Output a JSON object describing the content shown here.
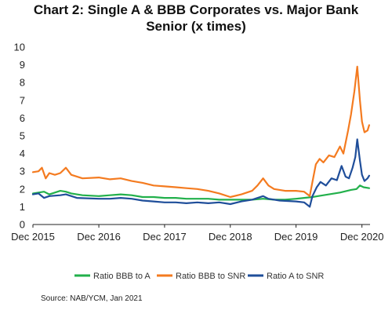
{
  "chart_data": {
    "type": "line",
    "title_line1": "Chart 2: Single A & BBB Corporates vs. Major Bank",
    "title_line2": "Senior (x times)",
    "xlabel": "",
    "ylabel": "",
    "xlim": [
      "2015-12-01",
      "2021-01-15"
    ],
    "ylim": [
      0,
      10
    ],
    "y_ticks": [
      "0",
      "1",
      "2",
      "3",
      "4",
      "5",
      "6",
      "7",
      "8",
      "9",
      "10"
    ],
    "x_ticks": [
      {
        "date": "2015-12-01",
        "label": "Dec 2015"
      },
      {
        "date": "2016-12-01",
        "label": "Dec 2016"
      },
      {
        "date": "2017-12-01",
        "label": "Dec 2017"
      },
      {
        "date": "2018-12-01",
        "label": "Dec 2018"
      },
      {
        "date": "2019-12-01",
        "label": "Dec 2019"
      },
      {
        "date": "2020-12-01",
        "label": "Dec 2020"
      }
    ],
    "grid": false,
    "legend_position": "bottom",
    "series": [
      {
        "name": "Ratio BBB to A",
        "color": "#22b04b",
        "points": [
          [
            "2015-12-01",
            1.75
          ],
          [
            "2016-01-01",
            1.8
          ],
          [
            "2016-02-01",
            1.85
          ],
          [
            "2016-03-01",
            1.7
          ],
          [
            "2016-04-01",
            1.8
          ],
          [
            "2016-05-01",
            1.9
          ],
          [
            "2016-06-01",
            1.85
          ],
          [
            "2016-07-01",
            1.75
          ],
          [
            "2016-09-01",
            1.65
          ],
          [
            "2016-12-01",
            1.6
          ],
          [
            "2017-02-01",
            1.65
          ],
          [
            "2017-04-01",
            1.7
          ],
          [
            "2017-06-01",
            1.65
          ],
          [
            "2017-08-01",
            1.55
          ],
          [
            "2017-10-01",
            1.55
          ],
          [
            "2017-12-01",
            1.5
          ],
          [
            "2018-02-01",
            1.5
          ],
          [
            "2018-04-01",
            1.45
          ],
          [
            "2018-06-01",
            1.45
          ],
          [
            "2018-08-01",
            1.45
          ],
          [
            "2018-10-01",
            1.4
          ],
          [
            "2018-12-01",
            1.4
          ],
          [
            "2019-02-01",
            1.4
          ],
          [
            "2019-04-01",
            1.4
          ],
          [
            "2019-06-01",
            1.45
          ],
          [
            "2019-08-01",
            1.4
          ],
          [
            "2019-10-01",
            1.4
          ],
          [
            "2019-12-01",
            1.45
          ],
          [
            "2020-01-15",
            1.5
          ],
          [
            "2020-03-01",
            1.55
          ],
          [
            "2020-04-01",
            1.6
          ],
          [
            "2020-06-01",
            1.7
          ],
          [
            "2020-08-01",
            1.8
          ],
          [
            "2020-10-01",
            1.95
          ],
          [
            "2020-11-01",
            2.0
          ],
          [
            "2020-11-20",
            2.2
          ],
          [
            "2020-12-10",
            2.1
          ],
          [
            "2021-01-10",
            2.05
          ]
        ]
      },
      {
        "name": "Ratio BBB to SNR",
        "color": "#f47b20",
        "points": [
          [
            "2015-12-01",
            2.95
          ],
          [
            "2016-01-01",
            3.0
          ],
          [
            "2016-01-20",
            3.2
          ],
          [
            "2016-02-10",
            2.6
          ],
          [
            "2016-03-01",
            2.9
          ],
          [
            "2016-04-01",
            2.8
          ],
          [
            "2016-05-01",
            2.9
          ],
          [
            "2016-06-01",
            3.2
          ],
          [
            "2016-07-01",
            2.8
          ],
          [
            "2016-09-01",
            2.6
          ],
          [
            "2016-12-01",
            2.65
          ],
          [
            "2017-02-01",
            2.55
          ],
          [
            "2017-04-01",
            2.6
          ],
          [
            "2017-06-01",
            2.45
          ],
          [
            "2017-08-01",
            2.35
          ],
          [
            "2017-10-01",
            2.2
          ],
          [
            "2017-12-01",
            2.15
          ],
          [
            "2018-02-01",
            2.1
          ],
          [
            "2018-04-01",
            2.05
          ],
          [
            "2018-06-01",
            2.0
          ],
          [
            "2018-08-01",
            1.9
          ],
          [
            "2018-10-01",
            1.75
          ],
          [
            "2018-12-01",
            1.55
          ],
          [
            "2019-02-01",
            1.7
          ],
          [
            "2019-04-01",
            1.9
          ],
          [
            "2019-05-01",
            2.2
          ],
          [
            "2019-06-01",
            2.6
          ],
          [
            "2019-07-01",
            2.2
          ],
          [
            "2019-08-01",
            2.0
          ],
          [
            "2019-10-01",
            1.9
          ],
          [
            "2019-12-01",
            1.9
          ],
          [
            "2020-01-15",
            1.85
          ],
          [
            "2020-02-15",
            1.6
          ],
          [
            "2020-03-01",
            2.4
          ],
          [
            "2020-03-20",
            3.4
          ],
          [
            "2020-04-10",
            3.7
          ],
          [
            "2020-05-01",
            3.5
          ],
          [
            "2020-06-01",
            3.9
          ],
          [
            "2020-07-01",
            3.8
          ],
          [
            "2020-08-01",
            4.4
          ],
          [
            "2020-08-20",
            4.0
          ],
          [
            "2020-09-15",
            5.3
          ],
          [
            "2020-10-01",
            6.2
          ],
          [
            "2020-10-20",
            7.5
          ],
          [
            "2020-11-05",
            8.9
          ],
          [
            "2020-11-20",
            7.0
          ],
          [
            "2020-12-01",
            5.8
          ],
          [
            "2020-12-15",
            5.2
          ],
          [
            "2021-01-01",
            5.3
          ],
          [
            "2021-01-10",
            5.6
          ]
        ]
      },
      {
        "name": "Ratio A to SNR",
        "color": "#1f4e9a",
        "points": [
          [
            "2015-12-01",
            1.7
          ],
          [
            "2016-01-01",
            1.75
          ],
          [
            "2016-02-01",
            1.5
          ],
          [
            "2016-03-01",
            1.6
          ],
          [
            "2016-05-01",
            1.65
          ],
          [
            "2016-06-01",
            1.7
          ],
          [
            "2016-08-01",
            1.5
          ],
          [
            "2016-12-01",
            1.45
          ],
          [
            "2017-02-01",
            1.45
          ],
          [
            "2017-04-01",
            1.5
          ],
          [
            "2017-06-01",
            1.45
          ],
          [
            "2017-08-01",
            1.35
          ],
          [
            "2017-10-01",
            1.3
          ],
          [
            "2017-12-01",
            1.25
          ],
          [
            "2018-02-01",
            1.25
          ],
          [
            "2018-04-01",
            1.2
          ],
          [
            "2018-06-01",
            1.25
          ],
          [
            "2018-08-01",
            1.2
          ],
          [
            "2018-10-01",
            1.25
          ],
          [
            "2018-12-01",
            1.15
          ],
          [
            "2019-02-01",
            1.3
          ],
          [
            "2019-04-01",
            1.4
          ],
          [
            "2019-06-01",
            1.6
          ],
          [
            "2019-07-01",
            1.45
          ],
          [
            "2019-09-01",
            1.35
          ],
          [
            "2019-12-01",
            1.3
          ],
          [
            "2020-01-15",
            1.25
          ],
          [
            "2020-02-15",
            1.0
          ],
          [
            "2020-03-01",
            1.6
          ],
          [
            "2020-03-25",
            2.1
          ],
          [
            "2020-04-15",
            2.4
          ],
          [
            "2020-05-15",
            2.2
          ],
          [
            "2020-06-15",
            2.6
          ],
          [
            "2020-07-15",
            2.5
          ],
          [
            "2020-08-10",
            3.3
          ],
          [
            "2020-09-01",
            2.7
          ],
          [
            "2020-09-20",
            2.6
          ],
          [
            "2020-10-10",
            3.2
          ],
          [
            "2020-10-25",
            3.8
          ],
          [
            "2020-11-05",
            4.8
          ],
          [
            "2020-11-20",
            3.6
          ],
          [
            "2020-12-01",
            2.8
          ],
          [
            "2020-12-15",
            2.45
          ],
          [
            "2021-01-01",
            2.6
          ],
          [
            "2021-01-10",
            2.75
          ]
        ]
      }
    ],
    "source": "Source: NAB/YCM, Jan 2021"
  }
}
